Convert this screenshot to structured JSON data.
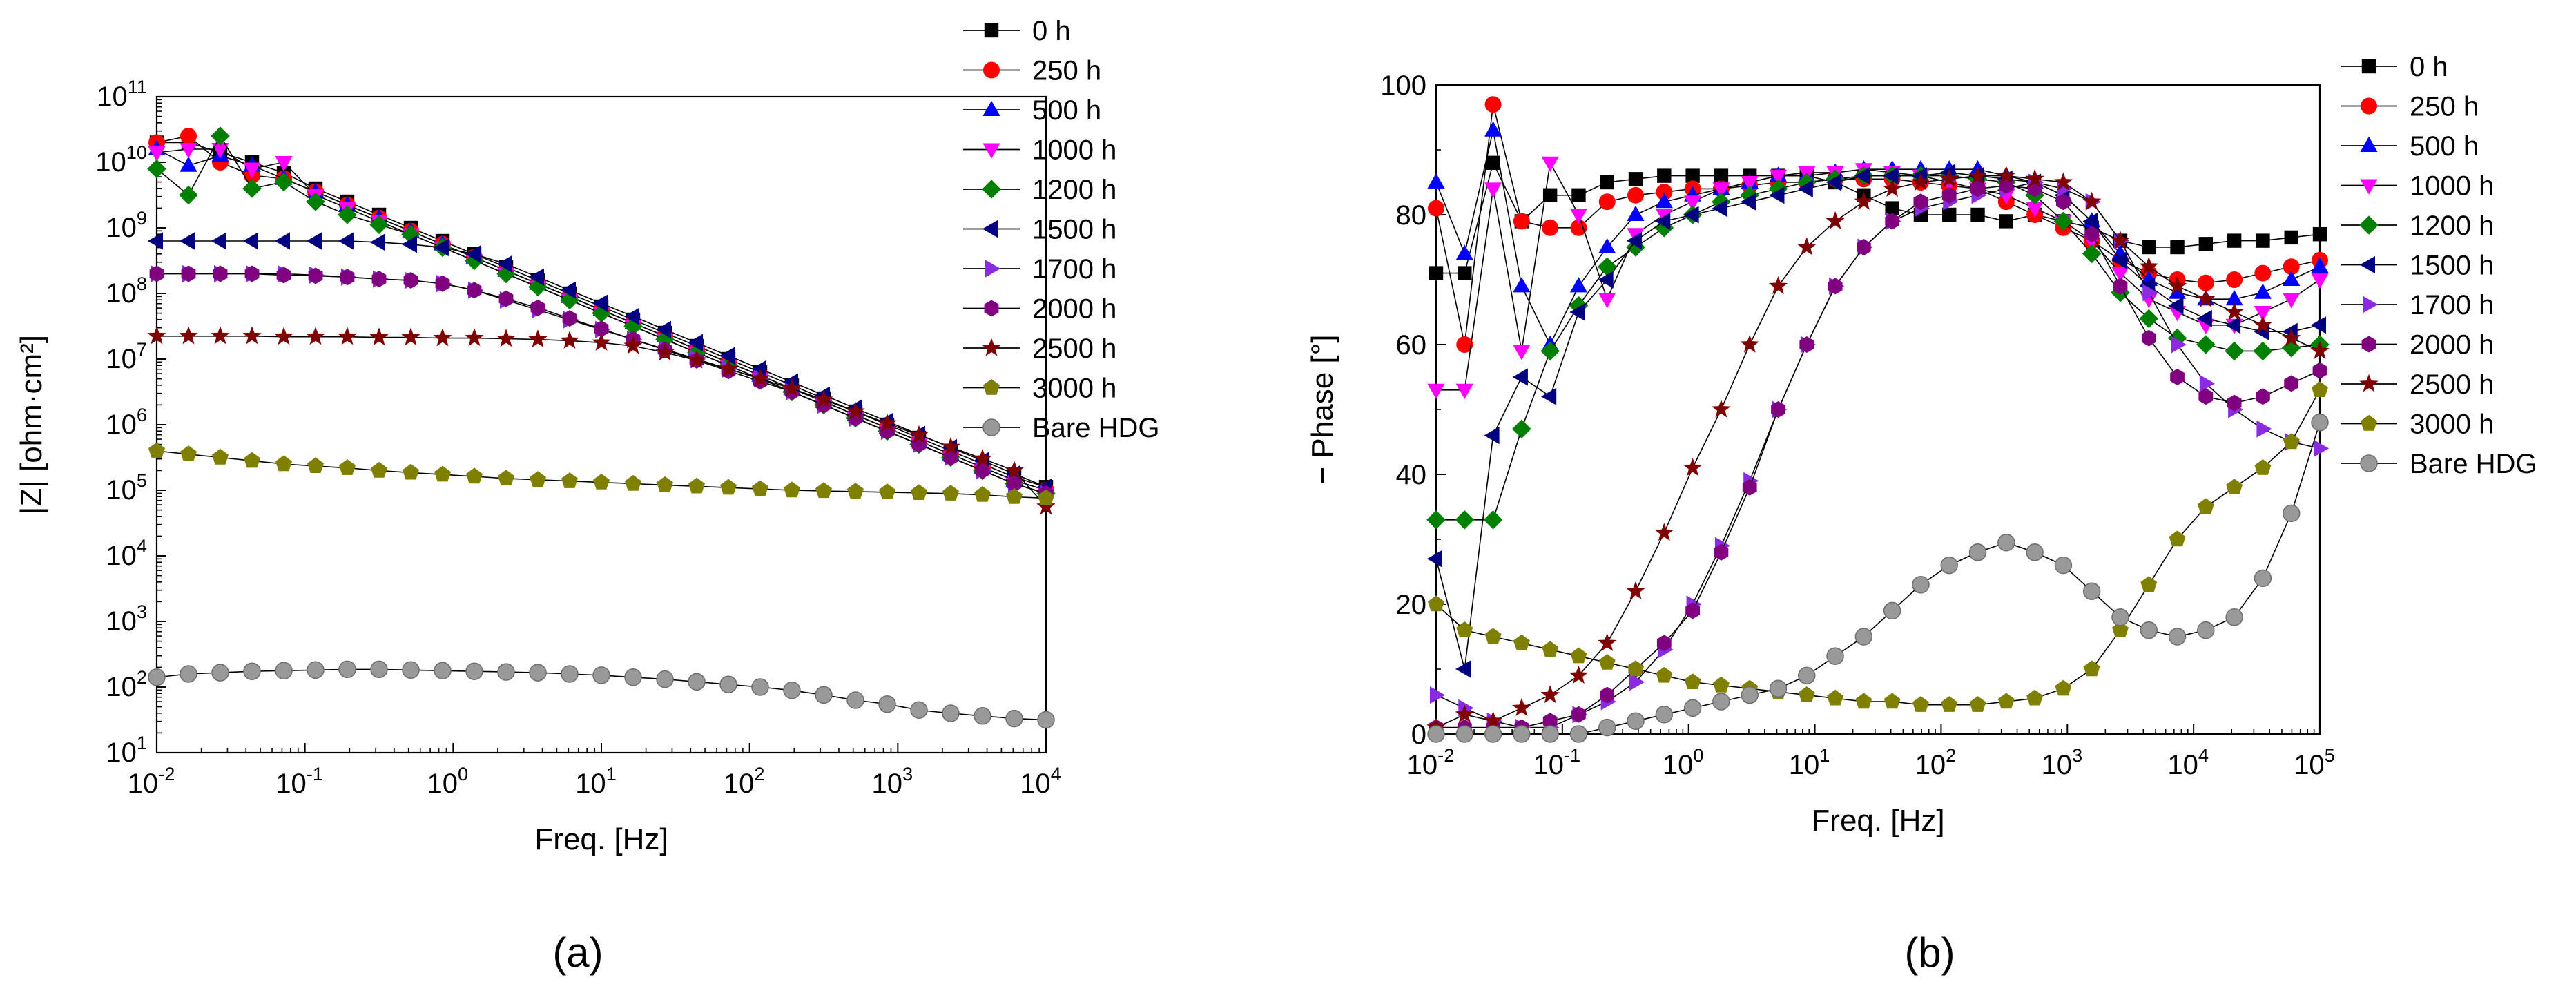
{
  "chart_data": [
    {
      "panel": "a",
      "caption": "(a)",
      "type": "scatter",
      "xscale": "log",
      "yscale": "log",
      "xlabel": "Freq. [Hz]",
      "ylabel": "|Z| [ohm·cm²]",
      "xlim": [
        0.01,
        10000
      ],
      "ylim": [
        10,
        100000000000
      ],
      "x_tick_exponents": [
        -2,
        -1,
        0,
        1,
        2,
        3,
        4
      ],
      "y_tick_exponents": [
        1,
        2,
        3,
        4,
        5,
        6,
        7,
        8,
        9,
        10,
        11
      ],
      "legend_position": "top-right (outside)",
      "series": [
        {
          "name": "0 h",
          "color": "#000000",
          "marker": "square",
          "logy": [
            10.3,
            10.3,
            10.15,
            10.0,
            9.84,
            9.6,
            9.4,
            9.2,
            9.0,
            8.8,
            8.6,
            8.4,
            8.2,
            8.0,
            7.8,
            7.6,
            7.4,
            7.2,
            7.0,
            6.8,
            6.6,
            6.4,
            6.2,
            6.0,
            5.8,
            5.6,
            5.4,
            5.2,
            5.05
          ]
        },
        {
          "name": "250 h",
          "color": "#ff0000",
          "marker": "circle",
          "logy": [
            10.3,
            10.4,
            10.0,
            9.8,
            9.75,
            9.55,
            9.35,
            9.15,
            8.95,
            8.75,
            8.55,
            8.35,
            8.15,
            7.95,
            7.75,
            7.55,
            7.35,
            7.15,
            6.95,
            6.75,
            6.55,
            6.35,
            6.15,
            5.95,
            5.75,
            5.55,
            5.35,
            5.15,
            5.0
          ]
        },
        {
          "name": "500 h",
          "color": "#0000ff",
          "marker": "triangle-up",
          "logy": [
            10.2,
            9.95,
            10.1,
            9.95,
            9.75,
            9.55,
            9.35,
            9.15,
            8.95,
            8.75,
            8.55,
            8.35,
            8.15,
            7.95,
            7.75,
            7.55,
            7.35,
            7.15,
            6.95,
            6.75,
            6.55,
            6.35,
            6.15,
            5.95,
            5.75,
            5.55,
            5.35,
            5.15,
            5.0
          ]
        },
        {
          "name": "1000 h",
          "color": "#ff00ff",
          "marker": "triangle-down",
          "logy": [
            10.15,
            10.2,
            10.2,
            9.9,
            10.0,
            9.5,
            9.3,
            9.1,
            8.9,
            8.7,
            8.5,
            8.3,
            8.1,
            7.9,
            7.7,
            7.5,
            7.3,
            7.1,
            6.9,
            6.7,
            6.5,
            6.3,
            6.1,
            5.9,
            5.7,
            5.5,
            5.3,
            5.1,
            4.95
          ]
        },
        {
          "name": "1200 h",
          "color": "#008000",
          "marker": "diamond",
          "logy": [
            9.9,
            9.5,
            10.4,
            9.6,
            9.7,
            9.4,
            9.2,
            9.05,
            8.9,
            8.7,
            8.5,
            8.3,
            8.1,
            7.9,
            7.7,
            7.5,
            7.3,
            7.1,
            6.9,
            6.7,
            6.5,
            6.3,
            6.1,
            5.9,
            5.7,
            5.5,
            5.3,
            5.1,
            4.95
          ]
        },
        {
          "name": "1500 h",
          "color": "#000080",
          "marker": "triangle-left",
          "logy": [
            8.8,
            8.8,
            8.8,
            8.8,
            8.8,
            8.8,
            8.8,
            8.78,
            8.75,
            8.7,
            8.6,
            8.45,
            8.25,
            8.05,
            7.85,
            7.65,
            7.45,
            7.25,
            7.05,
            6.85,
            6.65,
            6.45,
            6.25,
            6.05,
            5.85,
            5.65,
            5.45,
            5.25,
            5.05
          ]
        },
        {
          "name": "1700 h",
          "color": "#8a2be2",
          "marker": "triangle-right",
          "logy": [
            8.3,
            8.3,
            8.3,
            8.3,
            8.3,
            8.28,
            8.25,
            8.22,
            8.2,
            8.15,
            8.05,
            7.9,
            7.75,
            7.6,
            7.45,
            7.3,
            7.15,
            7.0,
            6.85,
            6.7,
            6.5,
            6.3,
            6.1,
            5.9,
            5.7,
            5.5,
            5.3,
            5.1,
            4.95
          ]
        },
        {
          "name": "2000 h",
          "color": "#800080",
          "marker": "hexagon",
          "logy": [
            8.3,
            8.3,
            8.3,
            8.3,
            8.28,
            8.27,
            8.25,
            8.22,
            8.2,
            8.15,
            8.05,
            7.92,
            7.78,
            7.62,
            7.46,
            7.3,
            7.14,
            6.98,
            6.82,
            6.66,
            6.5,
            6.3,
            6.1,
            5.9,
            5.7,
            5.5,
            5.3,
            5.1,
            4.95
          ]
        },
        {
          "name": "2500 h",
          "color": "#800000",
          "marker": "star",
          "logy": [
            7.35,
            7.35,
            7.35,
            7.35,
            7.34,
            7.34,
            7.34,
            7.33,
            7.33,
            7.32,
            7.32,
            7.31,
            7.3,
            7.28,
            7.25,
            7.2,
            7.1,
            6.98,
            6.85,
            6.7,
            6.55,
            6.38,
            6.2,
            6.02,
            5.84,
            5.66,
            5.48,
            5.3,
            4.75
          ]
        },
        {
          "name": "3000 h",
          "color": "#808000",
          "marker": "pentagon",
          "logy": [
            5.6,
            5.55,
            5.5,
            5.45,
            5.4,
            5.37,
            5.34,
            5.3,
            5.27,
            5.24,
            5.21,
            5.18,
            5.16,
            5.14,
            5.12,
            5.1,
            5.08,
            5.06,
            5.04,
            5.02,
            5.0,
            4.99,
            4.98,
            4.97,
            4.96,
            4.95,
            4.93,
            4.9,
            4.88
          ]
        },
        {
          "name": "Bare HDG",
          "color": "#999999",
          "marker": "sphere",
          "logy": [
            2.15,
            2.2,
            2.22,
            2.24,
            2.25,
            2.26,
            2.27,
            2.27,
            2.26,
            2.25,
            2.24,
            2.23,
            2.22,
            2.2,
            2.18,
            2.15,
            2.12,
            2.08,
            2.04,
            2.0,
            1.95,
            1.88,
            1.8,
            1.74,
            1.65,
            1.6,
            1.56,
            1.52,
            1.5
          ]
        }
      ]
    },
    {
      "panel": "b",
      "caption": "(b)",
      "type": "scatter",
      "xscale": "log",
      "yscale": "linear",
      "xlabel": "Freq. [Hz]",
      "ylabel": "− Phase [°]",
      "xlim": [
        0.01,
        100000
      ],
      "ylim": [
        0,
        100
      ],
      "x_tick_exponents": [
        -2,
        -1,
        0,
        1,
        2,
        3,
        4,
        5
      ],
      "y_ticks": [
        "0",
        "20",
        "40",
        "60",
        "80",
        "100"
      ],
      "legend_position": "top-right (outside)",
      "series": [
        {
          "name": "0 h",
          "color": "#000000",
          "marker": "square",
          "y": [
            71,
            71,
            88,
            79,
            83,
            83,
            85,
            85.5,
            86,
            86,
            86,
            86,
            86,
            86,
            85,
            83,
            81,
            80,
            80,
            80,
            79,
            80,
            79,
            78,
            76,
            75,
            75,
            75.5,
            76,
            76,
            76.5,
            77
          ]
        },
        {
          "name": "250 h",
          "color": "#ff0000",
          "marker": "circle",
          "y": [
            81,
            60,
            97,
            79,
            78,
            78,
            82,
            83,
            83.5,
            84,
            84,
            84.5,
            85,
            85,
            85.5,
            85.5,
            85.5,
            85,
            84.5,
            84,
            82,
            80,
            78,
            76,
            73,
            71,
            70,
            69.5,
            70,
            71,
            72,
            73
          ]
        },
        {
          "name": "500 h",
          "color": "#0000ff",
          "marker": "triangle-up",
          "y": [
            85,
            74,
            93,
            69,
            60,
            69,
            75,
            80,
            82,
            83,
            84,
            85,
            86,
            86,
            86.5,
            87,
            87,
            87,
            87,
            87,
            86,
            85,
            83,
            79,
            74,
            70,
            68,
            67,
            67,
            68,
            70,
            72
          ]
        },
        {
          "name": "1000 h",
          "color": "#ff00ff",
          "marker": "triangle-down",
          "y": [
            53,
            53,
            84,
            59,
            88,
            80,
            67,
            77,
            80,
            82,
            84,
            85,
            86,
            86.5,
            86.5,
            87,
            86.5,
            86,
            85,
            84,
            83,
            81,
            79,
            76,
            71,
            67,
            65,
            63,
            63,
            65,
            67,
            70
          ]
        },
        {
          "name": "1200 h",
          "color": "#008000",
          "marker": "diamond",
          "y": [
            33,
            33,
            33,
            47,
            59,
            66,
            72,
            75,
            78,
            80,
            82,
            83,
            84,
            85,
            85.5,
            86,
            86,
            86,
            86,
            85.5,
            85,
            83,
            79,
            74,
            68,
            64,
            61,
            60,
            59,
            59,
            59.5,
            60
          ]
        },
        {
          "name": "1500 h",
          "color": "#000080",
          "marker": "triangle-left",
          "y": [
            27,
            10,
            46,
            55,
            52,
            65,
            70,
            76,
            79,
            80,
            81,
            82,
            83,
            84,
            85,
            86,
            86,
            86,
            86.5,
            86,
            85.5,
            85,
            83,
            79,
            73,
            69,
            66,
            64,
            63,
            62,
            62,
            63
          ]
        },
        {
          "name": "1700 h",
          "color": "#8a2be2",
          "marker": "triangle-right",
          "y": [
            6,
            4,
            2,
            1,
            1,
            3,
            5,
            8,
            13,
            20,
            29,
            39,
            50,
            60,
            69,
            75,
            79,
            81,
            82,
            83,
            84,
            85,
            84,
            82,
            76,
            68,
            60,
            54,
            50,
            47,
            45,
            44
          ]
        },
        {
          "name": "2000 h",
          "color": "#800080",
          "marker": "hexagon",
          "y": [
            1,
            1,
            1,
            1,
            2,
            3,
            6,
            10,
            14,
            19,
            28,
            38,
            50,
            60,
            69,
            75,
            79,
            82,
            83,
            84,
            84.5,
            84,
            82,
            77,
            69,
            61,
            55,
            52,
            51,
            52,
            54,
            56
          ]
        },
        {
          "name": "2500 h",
          "color": "#800000",
          "marker": "star",
          "y": [
            1,
            3,
            2,
            4,
            6,
            9,
            14,
            22,
            31,
            41,
            50,
            60,
            69,
            75,
            79,
            82,
            84,
            85,
            85.5,
            86,
            86,
            85.5,
            85,
            82,
            76,
            72,
            69,
            67,
            65,
            63,
            61,
            59
          ]
        },
        {
          "name": "3000 h",
          "color": "#808000",
          "marker": "pentagon",
          "y": [
            20,
            16,
            15,
            14,
            13,
            12,
            11,
            10,
            9,
            8,
            7.5,
            7,
            6.5,
            6,
            5.5,
            5,
            5,
            4.5,
            4.5,
            4.5,
            5,
            5.5,
            7,
            10,
            16,
            23,
            30,
            35,
            38,
            41,
            45,
            53
          ]
        },
        {
          "name": "Bare HDG",
          "color": "#999999",
          "marker": "sphere",
          "y": [
            0,
            0,
            0,
            0,
            0,
            0,
            1,
            2,
            3,
            4,
            5,
            6,
            7,
            9,
            12,
            15,
            19,
            23,
            26,
            28,
            29.5,
            28,
            26,
            22,
            18,
            16,
            15,
            16,
            18,
            24,
            34,
            48
          ]
        }
      ]
    }
  ]
}
